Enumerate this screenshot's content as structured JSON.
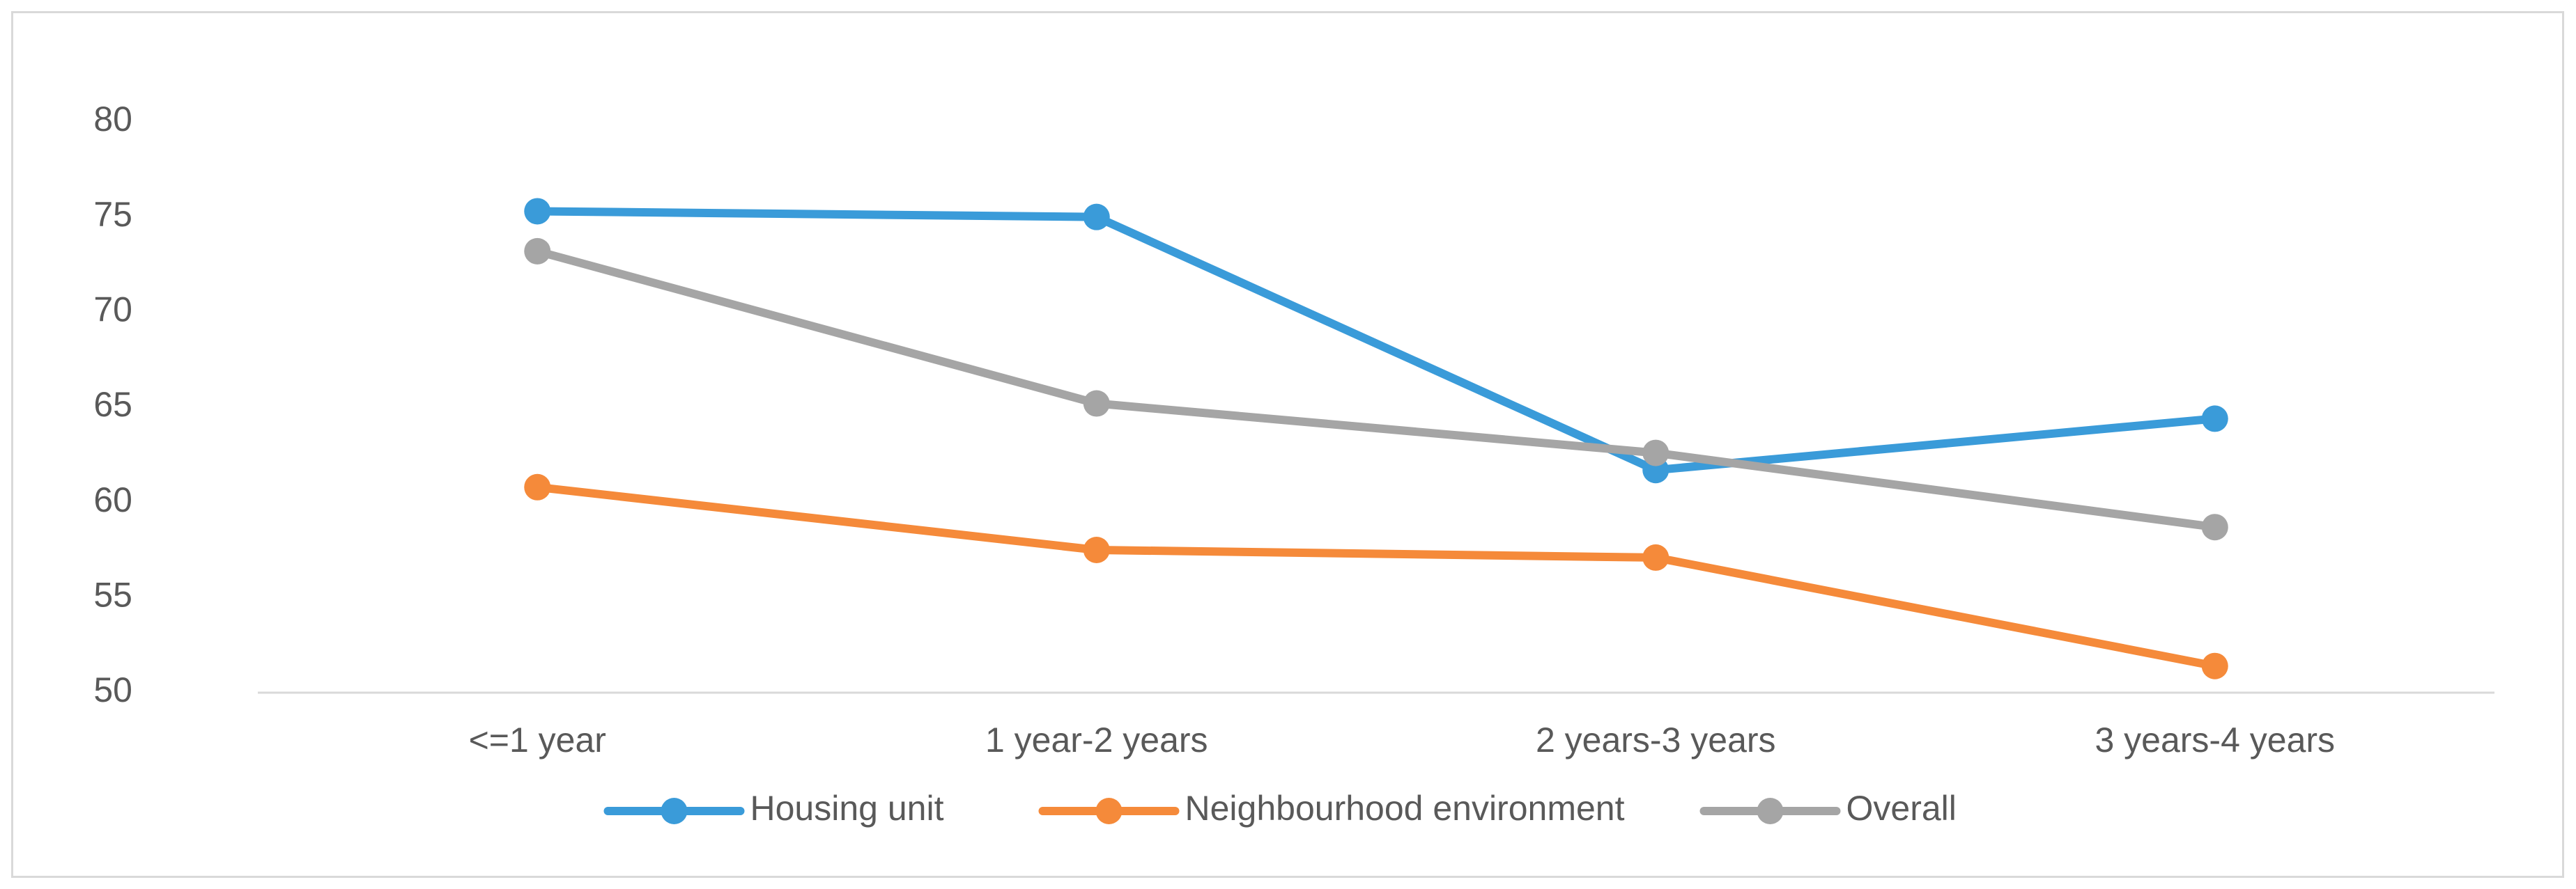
{
  "chart_data": {
    "type": "line",
    "title": "",
    "xlabel": "",
    "ylabel": "",
    "ylim": [
      50,
      80
    ],
    "yticks": [
      "50",
      "55",
      "60",
      "65",
      "70",
      "75",
      "80"
    ],
    "categories": [
      "<=1 year",
      "1 year-2 years",
      "2 years-3 years",
      "3 years-4 years"
    ],
    "grid": false,
    "legend_position": "bottom",
    "series": [
      {
        "name": "Housing unit",
        "color": "#3a9bd9",
        "values": [
          75.3,
          75.0,
          61.7,
          64.4
        ]
      },
      {
        "name": "Neighbourhood environment",
        "color": "#f58a3a",
        "values": [
          60.8,
          57.5,
          57.1,
          51.4
        ]
      },
      {
        "name": "Overall",
        "color": "#a5a5a5",
        "values": [
          73.2,
          65.2,
          62.6,
          58.7
        ]
      }
    ]
  }
}
